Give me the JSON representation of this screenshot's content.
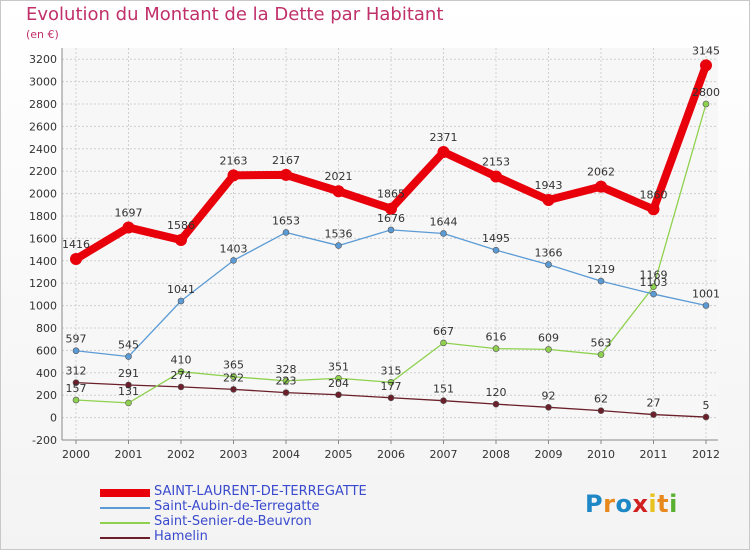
{
  "header": {
    "title": "Evolution du Montant de la Dette par Habitant",
    "subtitle": "(en €)"
  },
  "logo": {
    "letters": [
      "P",
      "r",
      "o",
      "x",
      "i",
      "t",
      "i"
    ],
    "colors": [
      "#1e88c7",
      "#e8891e",
      "#1e88c7",
      "#d02020",
      "#e8c21e",
      "#e8891e",
      "#5ab030"
    ]
  },
  "chart_data": {
    "type": "line",
    "title": "Evolution du Montant de la Dette par Habitant",
    "subtitle": "(en €)",
    "xlabel": "",
    "ylabel": "",
    "x": [
      "2000",
      "2001",
      "2002",
      "2003",
      "2004",
      "2005",
      "2006",
      "2007",
      "2008",
      "2009",
      "2010",
      "2011",
      "2012"
    ],
    "ylim": [
      -200,
      3300
    ],
    "yticks": [
      -200,
      0,
      200,
      400,
      600,
      800,
      1000,
      1200,
      1400,
      1600,
      1800,
      2000,
      2200,
      2400,
      2600,
      2800,
      3000,
      3200
    ],
    "grid": true,
    "legend_position": "bottom-left",
    "series": [
      {
        "name": "SAINT-LAURENT-DE-TERREGATTE",
        "color": "#e8000b",
        "values": [
          1416,
          1697,
          1586,
          2163,
          2167,
          2021,
          1865,
          2371,
          2153,
          1943,
          2062,
          1860,
          3145
        ],
        "labels": [
          "1416",
          "1697",
          "1586",
          "2163",
          "2167",
          "2021",
          "1865",
          "2371",
          "2153",
          "1943",
          "2062",
          "1860",
          "3145"
        ]
      },
      {
        "name": "Saint-Aubin-de-Terregatte",
        "color": "#5b9bd5",
        "values": [
          597,
          545,
          1041,
          1403,
          1653,
          1536,
          1676,
          1644,
          1495,
          1366,
          1219,
          1103,
          1001
        ],
        "labels": [
          "597",
          "545",
          "1041",
          "1403",
          "1653",
          "1536",
          "1676",
          "1644",
          "1495",
          "1366",
          "1219",
          "1103",
          "1001"
        ]
      },
      {
        "name": "Saint-Senier-de-Beuvron",
        "color": "#8fd14f",
        "values": [
          157,
          131,
          410,
          365,
          328,
          351,
          315,
          667,
          616,
          609,
          563,
          1169,
          2800
        ],
        "labels": [
          "157",
          "131",
          "410",
          "365",
          "328",
          "351",
          "315",
          "667",
          "616",
          "609",
          "563",
          "1169",
          "2800"
        ]
      },
      {
        "name": "Hamelin",
        "color": "#6b1f2a",
        "values": [
          312,
          291,
          274,
          252,
          223,
          204,
          177,
          151,
          120,
          92,
          62,
          27,
          5
        ],
        "labels": [
          "312",
          "291",
          "274",
          "252",
          "223",
          "204",
          "177",
          "151",
          "120",
          "92",
          "62",
          "27",
          "5"
        ]
      }
    ]
  }
}
